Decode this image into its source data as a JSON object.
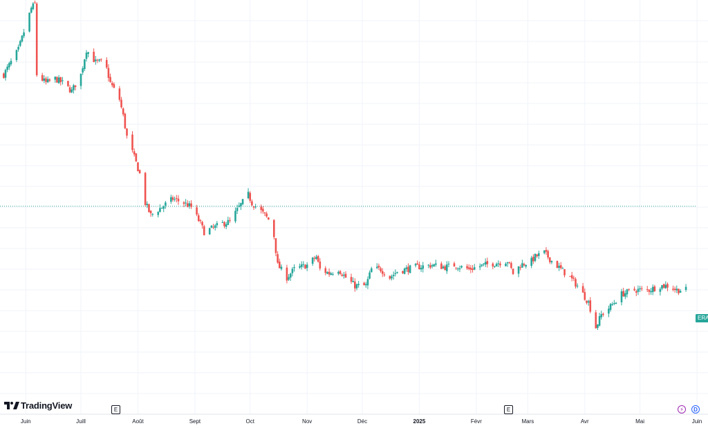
{
  "logo": {
    "text": "TradingView"
  },
  "price_tag": {
    "text": "ERA"
  },
  "events": [
    {
      "label": "E",
      "date": "2024-07-30"
    },
    {
      "label": "E",
      "date": "2025-02-25"
    }
  ],
  "corner_badges": [
    "⚡",
    "D"
  ],
  "colors": {
    "up": "#26a69a",
    "down": "#ef5350",
    "grid": "#f0f3fa",
    "last_price_line": "#26a69a"
  },
  "chart_data": {
    "type": "candlestick",
    "title": "",
    "xlabel": "",
    "ylabel": "",
    "grid": true,
    "x_axis": {
      "labels": [
        {
          "text": "Juin",
          "date": "2024-06-01"
        },
        {
          "text": "Juill",
          "date": "2024-07-01"
        },
        {
          "text": "Août",
          "date": "2024-08-01"
        },
        {
          "text": "Sept",
          "date": "2024-09-01"
        },
        {
          "text": "Oct",
          "date": "2024-10-01"
        },
        {
          "text": "Nov",
          "date": "2024-11-01"
        },
        {
          "text": "Déc",
          "date": "2024-12-01"
        },
        {
          "text": "2025",
          "date": "2025-01-01",
          "bold": true
        },
        {
          "text": "Févr",
          "date": "2025-02-01"
        },
        {
          "text": "Mars",
          "date": "2025-03-01"
        },
        {
          "text": "Avr",
          "date": "2025-04-01"
        },
        {
          "text": "Mai",
          "date": "2025-05-01"
        },
        {
          "text": "Juin",
          "date": "2025-06-01"
        }
      ],
      "range": [
        "2024-05-18",
        "2025-06-07"
      ]
    },
    "y_axis": {
      "range": [
        0,
        100
      ],
      "labels_visible": false
    },
    "last_value": 50.2,
    "close_path": [
      [
        "2024-05-20",
        82
      ],
      [
        "2024-05-28",
        88
      ],
      [
        "2024-06-04",
        98
      ],
      [
        "2024-06-06",
        99
      ],
      [
        "2024-06-07",
        82
      ],
      [
        "2024-06-12",
        80
      ],
      [
        "2024-06-17",
        81
      ],
      [
        "2024-06-21",
        80
      ],
      [
        "2024-06-26",
        78
      ],
      [
        "2024-07-01",
        82
      ],
      [
        "2024-07-04",
        88
      ],
      [
        "2024-07-09",
        85
      ],
      [
        "2024-07-14",
        85
      ],
      [
        "2024-07-17",
        80
      ],
      [
        "2024-07-22",
        76
      ],
      [
        "2024-07-24",
        72
      ],
      [
        "2024-07-26",
        67
      ],
      [
        "2024-07-30",
        62
      ],
      [
        "2024-08-02",
        58
      ],
      [
        "2024-08-05",
        51
      ],
      [
        "2024-08-08",
        48
      ],
      [
        "2024-08-14",
        50
      ],
      [
        "2024-08-20",
        52
      ],
      [
        "2024-08-26",
        51
      ],
      [
        "2024-08-30",
        50
      ],
      [
        "2024-09-04",
        46
      ],
      [
        "2024-09-06",
        44
      ],
      [
        "2024-09-11",
        45
      ],
      [
        "2024-09-16",
        46
      ],
      [
        "2024-09-20",
        46.5
      ],
      [
        "2024-09-25",
        50
      ],
      [
        "2024-09-30",
        53
      ],
      [
        "2024-10-02",
        51
      ],
      [
        "2024-10-07",
        49
      ],
      [
        "2024-10-11",
        47
      ],
      [
        "2024-10-14",
        43
      ],
      [
        "2024-10-16",
        36
      ],
      [
        "2024-10-21",
        33
      ],
      [
        "2024-10-25",
        35
      ],
      [
        "2024-11-01",
        36
      ],
      [
        "2024-11-06",
        38
      ],
      [
        "2024-11-08",
        35
      ],
      [
        "2024-11-13",
        34
      ],
      [
        "2024-11-18",
        35
      ],
      [
        "2024-11-22",
        33
      ],
      [
        "2024-11-27",
        31
      ],
      [
        "2024-12-03",
        31
      ],
      [
        "2024-12-06",
        35
      ],
      [
        "2024-12-11",
        35
      ],
      [
        "2024-12-16",
        33
      ],
      [
        "2024-12-20",
        34.5
      ],
      [
        "2024-12-30",
        35.5
      ],
      [
        "2025-01-08",
        36
      ],
      [
        "2025-01-15",
        35.5
      ],
      [
        "2025-01-20",
        36
      ],
      [
        "2025-01-28",
        35
      ],
      [
        "2025-02-05",
        36
      ],
      [
        "2025-02-12",
        36.5
      ],
      [
        "2025-02-18",
        37
      ],
      [
        "2025-02-21",
        34
      ],
      [
        "2025-02-25",
        36
      ],
      [
        "2025-03-03",
        37
      ],
      [
        "2025-03-05",
        38
      ],
      [
        "2025-03-10",
        39
      ],
      [
        "2025-03-14",
        37
      ],
      [
        "2025-03-19",
        35
      ],
      [
        "2025-03-24",
        33
      ],
      [
        "2025-03-28",
        31
      ],
      [
        "2025-04-03",
        27
      ],
      [
        "2025-04-07",
        21
      ],
      [
        "2025-04-10",
        24
      ],
      [
        "2025-04-15",
        26
      ],
      [
        "2025-04-21",
        29
      ],
      [
        "2025-04-28",
        30
      ],
      [
        "2025-05-06",
        30
      ],
      [
        "2025-05-12",
        31
      ],
      [
        "2025-05-16",
        31
      ],
      [
        "2025-05-21",
        30
      ],
      [
        "2025-05-26",
        30
      ]
    ]
  }
}
